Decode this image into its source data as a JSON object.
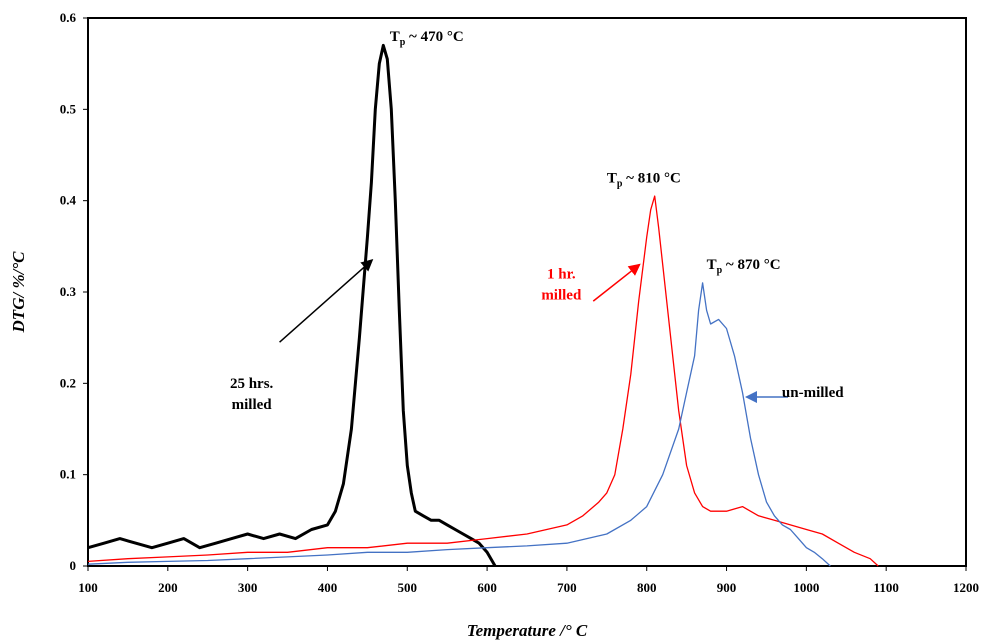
{
  "chart_data": {
    "type": "line",
    "title": "",
    "xlabel": "Temperature /° C",
    "ylabel": "DTG/ %/°C",
    "xlim": [
      100,
      1200
    ],
    "ylim": [
      0,
      0.6
    ],
    "xticks": [
      100,
      200,
      300,
      400,
      500,
      600,
      700,
      800,
      900,
      1000,
      1100,
      1200
    ],
    "yticks": [
      0,
      0.1,
      0.2,
      0.3,
      0.4,
      0.5,
      0.6
    ],
    "ytick_labels": [
      "0",
      "0.1",
      "0.2",
      "0.3",
      "0.4",
      "0.5",
      "0.6"
    ],
    "grid": false,
    "legend": "none",
    "series": [
      {
        "color": "#000000",
        "x": [
          100,
          120,
          140,
          160,
          180,
          200,
          220,
          240,
          260,
          280,
          300,
          320,
          340,
          360,
          380,
          400,
          410,
          420,
          430,
          440,
          450,
          455,
          460,
          465,
          470,
          475,
          480,
          485,
          490,
          495,
          500,
          505,
          510,
          520,
          530,
          540,
          550,
          560,
          570,
          580,
          590,
          600,
          610
        ],
        "y": [
          0.02,
          0.025,
          0.03,
          0.025,
          0.02,
          0.025,
          0.03,
          0.02,
          0.025,
          0.03,
          0.035,
          0.03,
          0.035,
          0.03,
          0.04,
          0.045,
          0.06,
          0.09,
          0.15,
          0.25,
          0.36,
          0.42,
          0.5,
          0.55,
          0.57,
          0.555,
          0.5,
          0.4,
          0.28,
          0.17,
          0.11,
          0.08,
          0.06,
          0.055,
          0.05,
          0.05,
          0.045,
          0.04,
          0.035,
          0.03,
          0.025,
          0.015,
          0.0
        ]
      },
      {
        "color": "#ff0000",
        "x": [
          100,
          150,
          200,
          250,
          300,
          350,
          400,
          450,
          500,
          550,
          600,
          650,
          700,
          720,
          740,
          750,
          760,
          770,
          780,
          790,
          800,
          805,
          810,
          815,
          820,
          830,
          840,
          850,
          860,
          870,
          880,
          900,
          920,
          940,
          960,
          980,
          1000,
          1020,
          1040,
          1060,
          1080,
          1090
        ],
        "y": [
          0.005,
          0.008,
          0.01,
          0.012,
          0.015,
          0.015,
          0.02,
          0.02,
          0.025,
          0.025,
          0.03,
          0.035,
          0.045,
          0.055,
          0.07,
          0.08,
          0.1,
          0.15,
          0.21,
          0.29,
          0.36,
          0.39,
          0.405,
          0.37,
          0.33,
          0.25,
          0.17,
          0.11,
          0.08,
          0.065,
          0.06,
          0.06,
          0.065,
          0.055,
          0.05,
          0.045,
          0.04,
          0.035,
          0.025,
          0.015,
          0.008,
          0.0
        ]
      },
      {
        "color": "#4472c4",
        "x": [
          100,
          150,
          200,
          250,
          300,
          350,
          400,
          450,
          500,
          550,
          600,
          650,
          700,
          750,
          780,
          800,
          820,
          840,
          850,
          860,
          865,
          870,
          875,
          880,
          890,
          900,
          910,
          920,
          930,
          940,
          950,
          960,
          970,
          980,
          990,
          1000,
          1010,
          1020,
          1030
        ],
        "y": [
          0.002,
          0.004,
          0.005,
          0.006,
          0.008,
          0.01,
          0.012,
          0.015,
          0.015,
          0.018,
          0.02,
          0.022,
          0.025,
          0.035,
          0.05,
          0.065,
          0.1,
          0.15,
          0.19,
          0.23,
          0.28,
          0.31,
          0.28,
          0.265,
          0.27,
          0.26,
          0.23,
          0.19,
          0.14,
          0.1,
          0.07,
          0.055,
          0.045,
          0.04,
          0.03,
          0.02,
          0.015,
          0.008,
          0.0
        ]
      }
    ],
    "annotations": [
      {
        "id": "peak-470",
        "sub": "p",
        "pre": "T",
        "rest": " ~ 470 °C",
        "x": 478,
        "y": 0.575,
        "color": "#000000"
      },
      {
        "id": "peak-810",
        "sub": "p",
        "pre": "T",
        "rest": " ~ 810 °C",
        "x": 750,
        "y": 0.42,
        "color": "#000000"
      },
      {
        "id": "peak-870",
        "sub": "p",
        "pre": "T",
        "rest": " ~ 870 °C",
        "x": 875,
        "y": 0.325,
        "color": "#000000"
      },
      {
        "id": "label-25hrs",
        "lines": [
          "25 hrs.",
          "milled"
        ],
        "x": 305,
        "y": 0.195,
        "color": "#000000",
        "anchor": "middle"
      },
      {
        "id": "label-1hr",
        "lines": [
          "1 hr.",
          "milled"
        ],
        "x": 693,
        "y": 0.315,
        "color": "#ff0000",
        "anchor": "middle"
      },
      {
        "id": "label-unmilled",
        "lines": [
          "un-milled"
        ],
        "x": 1008,
        "y": 0.185,
        "color": "#000000",
        "anchor": "middle"
      }
    ],
    "arrows": [
      {
        "from": [
          340,
          0.245
        ],
        "to": [
          456,
          0.335
        ],
        "color": "#000000"
      },
      {
        "from": [
          733,
          0.29
        ],
        "to": [
          791,
          0.33
        ],
        "color": "#ff0000"
      },
      {
        "from": [
          977,
          0.185
        ],
        "to": [
          925,
          0.185
        ],
        "color": "#4472c4"
      }
    ]
  }
}
